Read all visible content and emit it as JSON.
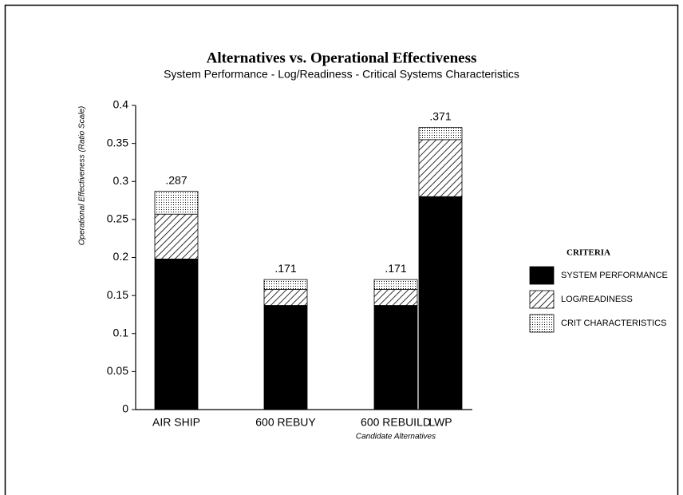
{
  "chart_data": {
    "type": "stacked_bar",
    "title": "Alternatives vs. Operational Effectiveness",
    "subtitle": "System Performance - Log/Readiness - Critical Systems Characteristics",
    "x_label": "Candidate Alternatives",
    "y_label": "Operational Effectiveness (Ratio Scale)",
    "categories": [
      "AIR SHIP",
      "600 REBUY",
      "600 REBUILD",
      "LWP"
    ],
    "series": [
      {
        "name": "SYSTEM PERFORMANCE",
        "color": "#000000",
        "pattern": "solid",
        "values": [
          0.198,
          0.137,
          0.137,
          0.28
        ]
      },
      {
        "name": "LOG/READINESS",
        "color": "#000000",
        "pattern": "hatch",
        "values": [
          0.059,
          0.021,
          0.021,
          0.075
        ]
      },
      {
        "name": "CRIT CHARACTERISTICS",
        "color": "#000000",
        "pattern": "dots",
        "values": [
          0.03,
          0.013,
          0.013,
          0.016
        ]
      }
    ],
    "totals": [
      0.287,
      0.171,
      0.171,
      0.371
    ],
    "total_labels": [
      ".287",
      ".171",
      ".171",
      ".371"
    ],
    "legend_title": "CRITERIA",
    "legend": "right",
    "ylim": [
      0,
      0.4
    ],
    "yticks": [
      0,
      0.05,
      0.1,
      0.15,
      0.2,
      0.25,
      0.3,
      0.35,
      0.4
    ]
  }
}
